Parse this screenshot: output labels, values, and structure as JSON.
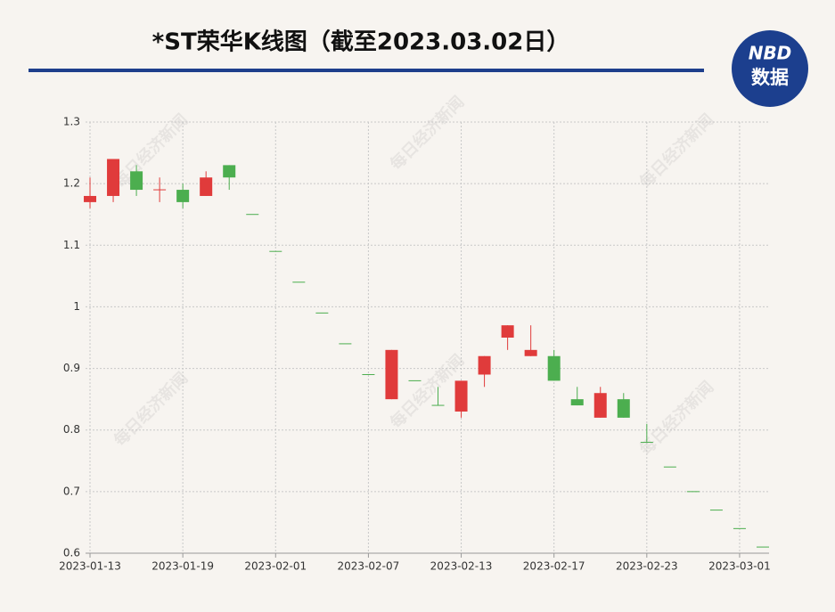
{
  "chart_data": {
    "type": "candlestick",
    "title": "*ST荣华K线图（截至2023.03.02日）",
    "logo": {
      "top": "NBD",
      "bottom": "数据"
    },
    "watermark": "每日经济新闻",
    "categories": [
      "2023-01-13",
      null,
      null,
      null,
      "2023-01-19",
      null,
      null,
      null,
      "2023-02-01",
      null,
      null,
      null,
      "2023-02-07",
      null,
      null,
      null,
      "2023-02-13",
      null,
      null,
      null,
      "2023-02-17",
      null,
      null,
      null,
      "2023-02-23",
      null,
      null,
      null,
      "2023-03-01",
      null
    ],
    "open": [
      1.17,
      1.18,
      1.22,
      1.19,
      1.19,
      1.18,
      1.23,
      1.15,
      1.09,
      1.04,
      0.99,
      0.94,
      0.89,
      0.85,
      0.88,
      0.84,
      0.83,
      0.89,
      0.95,
      0.92,
      0.92,
      0.85,
      0.82,
      0.85,
      0.78,
      0.74,
      0.7,
      0.67,
      0.64,
      0.61
    ],
    "high": [
      1.21,
      1.24,
      1.23,
      1.21,
      1.2,
      1.22,
      1.23,
      1.15,
      1.09,
      1.04,
      0.99,
      0.94,
      0.89,
      0.93,
      0.88,
      0.87,
      0.88,
      0.92,
      0.97,
      0.97,
      0.93,
      0.87,
      0.87,
      0.86,
      0.81,
      0.74,
      0.7,
      0.67,
      0.64,
      0.61
    ],
    "low": [
      1.16,
      1.17,
      1.18,
      1.17,
      1.16,
      1.18,
      1.19,
      1.15,
      1.09,
      1.04,
      0.99,
      0.94,
      0.89,
      0.85,
      0.88,
      0.84,
      0.82,
      0.87,
      0.93,
      0.92,
      0.88,
      0.84,
      0.82,
      0.82,
      0.78,
      0.74,
      0.7,
      0.67,
      0.64,
      0.61
    ],
    "close": [
      1.18,
      1.24,
      1.19,
      1.19,
      1.17,
      1.21,
      1.21,
      1.15,
      1.09,
      1.04,
      0.99,
      0.94,
      0.89,
      0.93,
      0.88,
      0.84,
      0.88,
      0.92,
      0.97,
      0.93,
      0.88,
      0.84,
      0.86,
      0.82,
      0.78,
      0.74,
      0.7,
      0.67,
      0.64,
      0.61
    ],
    "up_color": "#e03b3b",
    "down_color": "#4cae4f",
    "ylim": [
      0.6,
      1.3
    ],
    "yticks": [
      0.6,
      0.7,
      0.8,
      0.9,
      1,
      1.1,
      1.2,
      1.3
    ],
    "grid": true
  }
}
